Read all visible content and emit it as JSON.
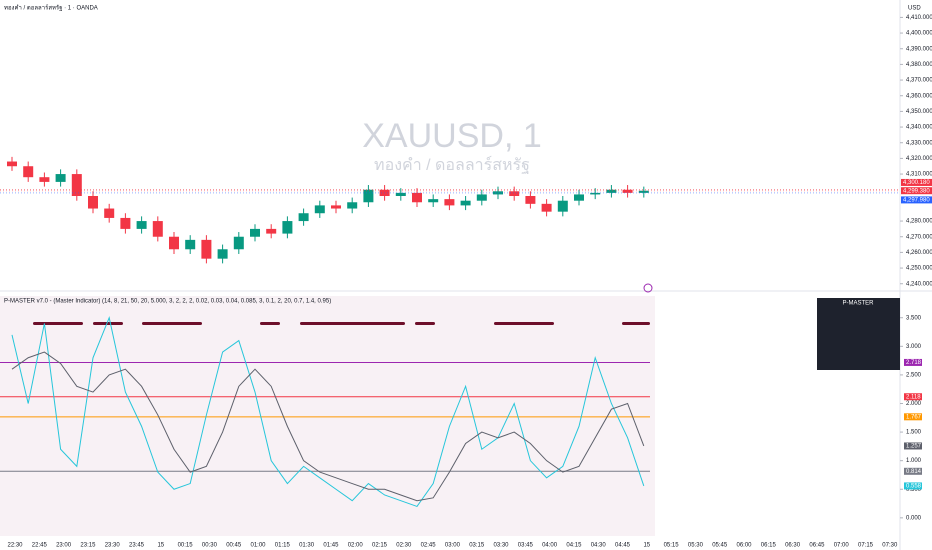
{
  "header": {
    "symbol": "ทองคำ / ดอลลาร์สหรัฐ · 1 · OANDA",
    "currency": "USD",
    "watermark": "XAUUSD, 1",
    "watermark_sub": "ทองคำ / ดอลลาร์สหรัฐ"
  },
  "time_labels": [
    "22:30",
    "22:45",
    "23:00",
    "23:15",
    "23:30",
    "23:45",
    "15",
    "00:15",
    "00:30",
    "00:45",
    "01:00",
    "01:15",
    "01:30",
    "01:45",
    "02:00",
    "02:15",
    "02:30",
    "02:45",
    "03:00",
    "03:15",
    "03:30",
    "03:45",
    "04:00",
    "04:15",
    "04:30",
    "04:45",
    "15",
    "05:15",
    "05:30",
    "05:45",
    "06:00",
    "06:15",
    "06:30",
    "06:45",
    "07:00",
    "07:15",
    "07:30"
  ],
  "chart_data": [
    {
      "type": "candlestick",
      "up_color": "#089981",
      "down_color": "#f23645",
      "open": [
        4318,
        4315,
        4308,
        4305,
        4310,
        4296,
        4288,
        4282,
        4275,
        4280,
        4270,
        4262,
        4268,
        4256,
        4262,
        4270,
        4275,
        4272,
        4280,
        4285,
        4290,
        4288,
        4292,
        4300,
        4296,
        4298,
        4292,
        4294,
        4290,
        4293,
        4297,
        4299,
        4296,
        4291,
        4286,
        4293,
        4297,
        4298,
        4300,
        4298
      ],
      "high": [
        4321,
        4318,
        4311,
        4313,
        4313,
        4299,
        4291,
        4285,
        4283,
        4283,
        4273,
        4271,
        4271,
        4265,
        4273,
        4278,
        4278,
        4283,
        4288,
        4293,
        4293,
        4295,
        4303,
        4303,
        4301,
        4301,
        4297,
        4297,
        4296,
        4300,
        4302,
        4302,
        4299,
        4294,
        4296,
        4300,
        4301,
        4303,
        4303,
        4302
      ],
      "low": [
        4312,
        4305,
        4302,
        4302,
        4293,
        4285,
        4279,
        4272,
        4272,
        4267,
        4259,
        4259,
        4253,
        4253,
        4259,
        4267,
        4269,
        4269,
        4277,
        4282,
        4285,
        4285,
        4289,
        4293,
        4293,
        4289,
        4289,
        4287,
        4287,
        4290,
        4294,
        4293,
        4288,
        4283,
        4283,
        4290,
        4294,
        4295,
        4295,
        4295
      ],
      "close": [
        4315,
        4308,
        4305,
        4310,
        4296,
        4288,
        4282,
        4275,
        4280,
        4270,
        4262,
        4268,
        4256,
        4262,
        4270,
        4275,
        4272,
        4280,
        4285,
        4290,
        4288,
        4292,
        4300,
        4296,
        4298,
        4292,
        4294,
        4290,
        4293,
        4297,
        4299,
        4296,
        4291,
        4286,
        4293,
        4297,
        4298,
        4300,
        4298,
        4299.38
      ],
      "ylim": [
        4236,
        4416
      ],
      "yticks": [
        {
          "value": 4410,
          "label": "4,410.000"
        },
        {
          "value": 4400,
          "label": "4,400.000"
        },
        {
          "value": 4390,
          "label": "4,390.000"
        },
        {
          "value": 4380,
          "label": "4,380.000"
        },
        {
          "value": 4370,
          "label": "4,370.000"
        },
        {
          "value": 4360,
          "label": "4,360.000"
        },
        {
          "value": 4350,
          "label": "4,350.000"
        },
        {
          "value": 4340,
          "label": "4,340.000"
        },
        {
          "value": 4330,
          "label": "4,330.000"
        },
        {
          "value": 4320,
          "label": "4,320.000"
        },
        {
          "value": 4310,
          "label": "4,310.000"
        },
        {
          "value": 4280,
          "label": "4,280.000"
        },
        {
          "value": 4270,
          "label": "4,270.000"
        },
        {
          "value": 4260,
          "label": "4,260.000"
        },
        {
          "value": 4250,
          "label": "4,250.000"
        },
        {
          "value": 4240,
          "label": "4,240.000"
        }
      ],
      "price_tags": [
        {
          "value": 4300.18,
          "label": "4,300.180",
          "color": "#f23645"
        },
        {
          "value": 4299.38,
          "label": "4,299.380",
          "color": "#f23645"
        },
        {
          "value": 4297.98,
          "label": "4,297.980",
          "color": "#2962ff"
        }
      ]
    },
    {
      "type": "line",
      "title": "P-MASTER v7.0 - (Master Indicator) (14, 8, 21, 50, 20, 5.000, 3, 2, 2, 2, 0.02, 0.03, 0.04, 0.085, 3, 0.1, 2, 20, 0.7, 1.4, 0.95)",
      "ylim": [
        -0.3,
        3.88
      ],
      "yticks": [
        {
          "value": 3.5,
          "label": "3.500"
        },
        {
          "value": 3,
          "label": "3.000"
        },
        {
          "value": 2.5,
          "label": "2.500"
        },
        {
          "value": 2,
          "label": "2.000"
        },
        {
          "value": 1.5,
          "label": "1.500"
        },
        {
          "value": 1,
          "label": "1.000"
        },
        {
          "value": 0.5,
          "label": "0.500"
        },
        {
          "value": 0,
          "label": "0.000"
        }
      ],
      "series": [
        {
          "color": "#26c6da",
          "values": [
            3.2,
            2.0,
            3.4,
            1.2,
            0.9,
            2.8,
            3.5,
            2.2,
            1.6,
            0.8,
            0.5,
            0.6,
            1.8,
            2.9,
            3.1,
            2.2,
            1.0,
            0.6,
            0.9,
            0.7,
            0.5,
            0.3,
            0.6,
            0.4,
            0.3,
            0.2,
            0.6,
            1.6,
            2.3,
            1.2,
            1.4,
            2.0,
            1.0,
            0.7,
            0.9,
            1.6,
            2.8,
            2.0,
            1.4,
            0.558
          ]
        },
        {
          "color": "#5d606b",
          "values": [
            2.6,
            2.8,
            2.9,
            2.7,
            2.3,
            2.2,
            2.5,
            2.6,
            2.3,
            1.8,
            1.2,
            0.8,
            0.9,
            1.5,
            2.3,
            2.6,
            2.3,
            1.6,
            1.0,
            0.8,
            0.7,
            0.6,
            0.5,
            0.5,
            0.4,
            0.3,
            0.35,
            0.8,
            1.3,
            1.5,
            1.4,
            1.5,
            1.3,
            1.0,
            0.8,
            0.9,
            1.4,
            1.9,
            2.0,
            1.257
          ]
        }
      ],
      "levels": [
        {
          "value": 2.718,
          "color": "#9c27b0"
        },
        {
          "value": 2.118,
          "color": "#f23645"
        },
        {
          "value": 1.767,
          "color": "#ff9800"
        },
        {
          "value": 0.814,
          "color": "#787b86"
        }
      ]
    }
  ],
  "table": {
    "title": "P-MASTER"
  }
}
